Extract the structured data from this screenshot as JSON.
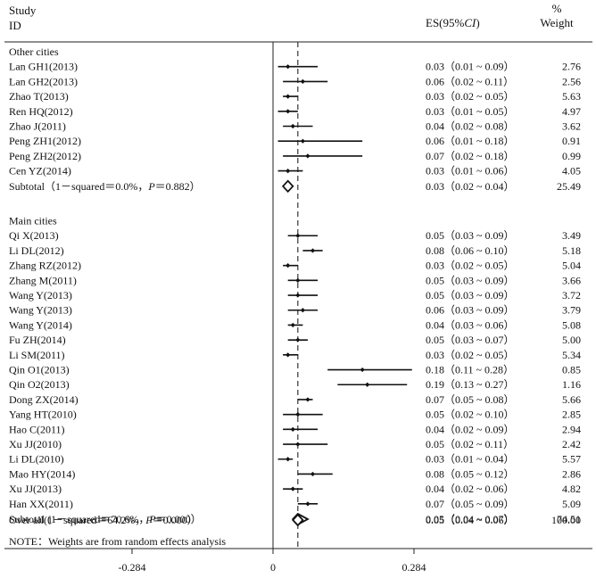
{
  "header": {
    "study_line1": "Study",
    "study_line2": "ID",
    "es_header": "ES(95%",
    "es_header_ci": "CI",
    "es_header_close": ")",
    "weight_line1": "%",
    "weight_line2": "Weight"
  },
  "footnote": "NOTE：Weights are from random effects analysis",
  "chart_data": {
    "type": "forest",
    "x_ticks": [
      {
        "value": -0.284,
        "label": "-0.284"
      },
      {
        "value": 0,
        "label": "0"
      },
      {
        "value": 0.284,
        "label": "0.284"
      }
    ],
    "xlim": [
      -0.284,
      0.284
    ],
    "null_line": 0,
    "overall_reference_line": 0.05,
    "groups": [
      {
        "name": "Other cities",
        "studies": [
          {
            "id": "Lan GH1(2013)",
            "es": 0.03,
            "lo": 0.01,
            "hi": 0.09,
            "es_text": "0.03（0.01 ~ 0.09）",
            "weight": "2.76"
          },
          {
            "id": "Lan GH2(2013)",
            "es": 0.06,
            "lo": 0.02,
            "hi": 0.11,
            "es_text": "0.06（0.02 ~ 0.11）",
            "weight": "2.56"
          },
          {
            "id": "Zhao T(2013)",
            "es": 0.03,
            "lo": 0.02,
            "hi": 0.05,
            "es_text": "0.03（0.02 ~ 0.05）",
            "weight": "5.63"
          },
          {
            "id": "Ren HQ(2012)",
            "es": 0.03,
            "lo": 0.01,
            "hi": 0.05,
            "es_text": "0.03（0.01 ~ 0.05）",
            "weight": "4.97"
          },
          {
            "id": "Zhao J(2011)",
            "es": 0.04,
            "lo": 0.02,
            "hi": 0.08,
            "es_text": "0.04（0.02 ~ 0.08）",
            "weight": "3.62"
          },
          {
            "id": "Peng ZH1(2012)",
            "es": 0.06,
            "lo": 0.01,
            "hi": 0.18,
            "es_text": "0.06（0.01 ~ 0.18）",
            "weight": "0.91"
          },
          {
            "id": "Peng ZH2(2012)",
            "es": 0.07,
            "lo": 0.02,
            "hi": 0.18,
            "es_text": "0.07（0.02 ~ 0.18）",
            "weight": "0.99"
          },
          {
            "id": "Cen YZ(2014)",
            "es": 0.03,
            "lo": 0.01,
            "hi": 0.06,
            "es_text": "0.03（0.01 ~ 0.06）",
            "weight": "4.05"
          }
        ],
        "subtotal": {
          "label": "Subtotal（1－squared＝0.0%，",
          "p_label": "P",
          "p_value": "＝0.882）",
          "es": 0.03,
          "lo": 0.02,
          "hi": 0.04,
          "es_text": "0.03（0.02 ~ 0.04）",
          "weight": "25.49"
        }
      },
      {
        "name": "Main cities",
        "studies": [
          {
            "id": "Qi X(2013)",
            "es": 0.05,
            "lo": 0.03,
            "hi": 0.09,
            "es_text": "0.05（0.03 ~ 0.09）",
            "weight": "3.49"
          },
          {
            "id": "Li DL(2012)",
            "es": 0.08,
            "lo": 0.06,
            "hi": 0.1,
            "es_text": "0.08（0.06 ~ 0.10）",
            "weight": "5.18"
          },
          {
            "id": "Zhang RZ(2012)",
            "es": 0.03,
            "lo": 0.02,
            "hi": 0.05,
            "es_text": "0.03（0.02 ~ 0.05）",
            "weight": "5.04"
          },
          {
            "id": "Zhang M(2011)",
            "es": 0.05,
            "lo": 0.03,
            "hi": 0.09,
            "es_text": "0.05（0.03 ~ 0.09）",
            "weight": "3.66"
          },
          {
            "id": "Wang Y(2013)",
            "es": 0.05,
            "lo": 0.03,
            "hi": 0.09,
            "es_text": "0.05（0.03 ~ 0.09）",
            "weight": "3.72"
          },
          {
            "id": "Wang Y(2013)",
            "es": 0.06,
            "lo": 0.03,
            "hi": 0.09,
            "es_text": "0.06（0.03 ~ 0.09）",
            "weight": "3.79"
          },
          {
            "id": "Wang Y(2014)",
            "es": 0.04,
            "lo": 0.03,
            "hi": 0.06,
            "es_text": "0.04（0.03 ~ 0.06）",
            "weight": "5.08"
          },
          {
            "id": "Fu ZH(2014)",
            "es": 0.05,
            "lo": 0.03,
            "hi": 0.07,
            "es_text": "0.05（0.03 ~ 0.07）",
            "weight": "5.00"
          },
          {
            "id": "Li SM(2011)",
            "es": 0.03,
            "lo": 0.02,
            "hi": 0.05,
            "es_text": "0.03（0.02 ~ 0.05）",
            "weight": "5.34"
          },
          {
            "id": "Qin O1(2013)",
            "es": 0.18,
            "lo": 0.11,
            "hi": 0.28,
            "es_text": "0.18（0.11 ~ 0.28）",
            "weight": "0.85"
          },
          {
            "id": "Qin O2(2013)",
            "es": 0.19,
            "lo": 0.13,
            "hi": 0.27,
            "es_text": "0.19（0.13 ~ 0.27）",
            "weight": "1.16"
          },
          {
            "id": "Dong ZX(2014)",
            "es": 0.07,
            "lo": 0.05,
            "hi": 0.08,
            "es_text": "0.07（0.05 ~ 0.08）",
            "weight": "5.66"
          },
          {
            "id": "Yang HT(2010)",
            "es": 0.05,
            "lo": 0.02,
            "hi": 0.1,
            "es_text": "0.05（0.02 ~ 0.10）",
            "weight": "2.85"
          },
          {
            "id": "Hao C(2011)",
            "es": 0.04,
            "lo": 0.02,
            "hi": 0.09,
            "es_text": "0.04（0.02 ~ 0.09）",
            "weight": "2.94"
          },
          {
            "id": "Xu JJ(2010)",
            "es": 0.05,
            "lo": 0.02,
            "hi": 0.11,
            "es_text": "0.05（0.02 ~ 0.11）",
            "weight": "2.42"
          },
          {
            "id": "Li DL(2010)",
            "es": 0.03,
            "lo": 0.01,
            "hi": 0.04,
            "es_text": "0.03（0.01 ~ 0.04）",
            "weight": "5.57"
          },
          {
            "id": "Mao HY(2014)",
            "es": 0.08,
            "lo": 0.05,
            "hi": 0.12,
            "es_text": "0.08（0.05 ~ 0.12）",
            "weight": "2.86"
          },
          {
            "id": "Xu JJ(2013)",
            "es": 0.04,
            "lo": 0.02,
            "hi": 0.06,
            "es_text": "0.04（0.02 ~ 0.06）",
            "weight": "4.82"
          },
          {
            "id": "Han XX(2011)",
            "es": 0.07,
            "lo": 0.05,
            "hi": 0.09,
            "es_text": "0.07（0.05 ~ 0.09）",
            "weight": "5.09"
          }
        ],
        "subtotal": {
          "label": "Subtotal (1－squared＝70.6%，",
          "p_label": "P",
          "p_value": "＝0.000）",
          "es": 0.05,
          "lo": 0.04,
          "hi": 0.07,
          "es_text": "0.05（0.04 ~ 0.07）",
          "weight": "74.51"
        }
      }
    ],
    "overall": {
      "label": "Over all(1－squared＝64.2%，",
      "p_label": "P",
      "p_value": "＝0.000）",
      "es": 0.05,
      "lo": 0.04,
      "hi": 0.06,
      "es_text": "0.05（0.04 ~ 0.06）",
      "weight": "100.00"
    }
  }
}
